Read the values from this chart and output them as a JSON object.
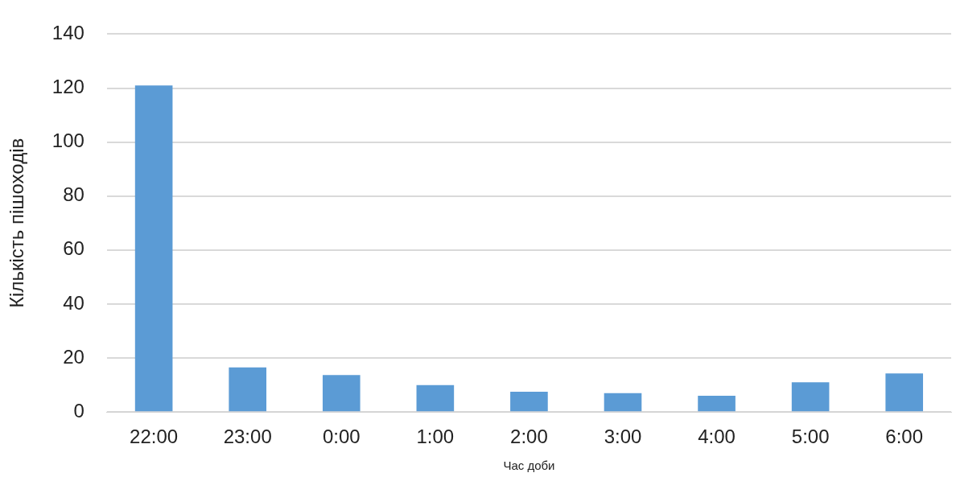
{
  "chart_data": {
    "type": "bar",
    "xlabel": "Час доби",
    "ylabel": "Кількість пішоходів",
    "categories": [
      "22:00",
      "23:00",
      "0:00",
      "1:00",
      "2:00",
      "3:00",
      "4:00",
      "5:00",
      "6:00"
    ],
    "values": [
      121,
      16.5,
      13.7,
      10,
      7.5,
      7,
      6,
      11,
      14.3
    ],
    "color": "#5b9bd5",
    "ylim": [
      0,
      140
    ],
    "yticks": [
      0,
      20,
      40,
      60,
      80,
      100,
      120,
      140
    ],
    "grid": "y"
  }
}
